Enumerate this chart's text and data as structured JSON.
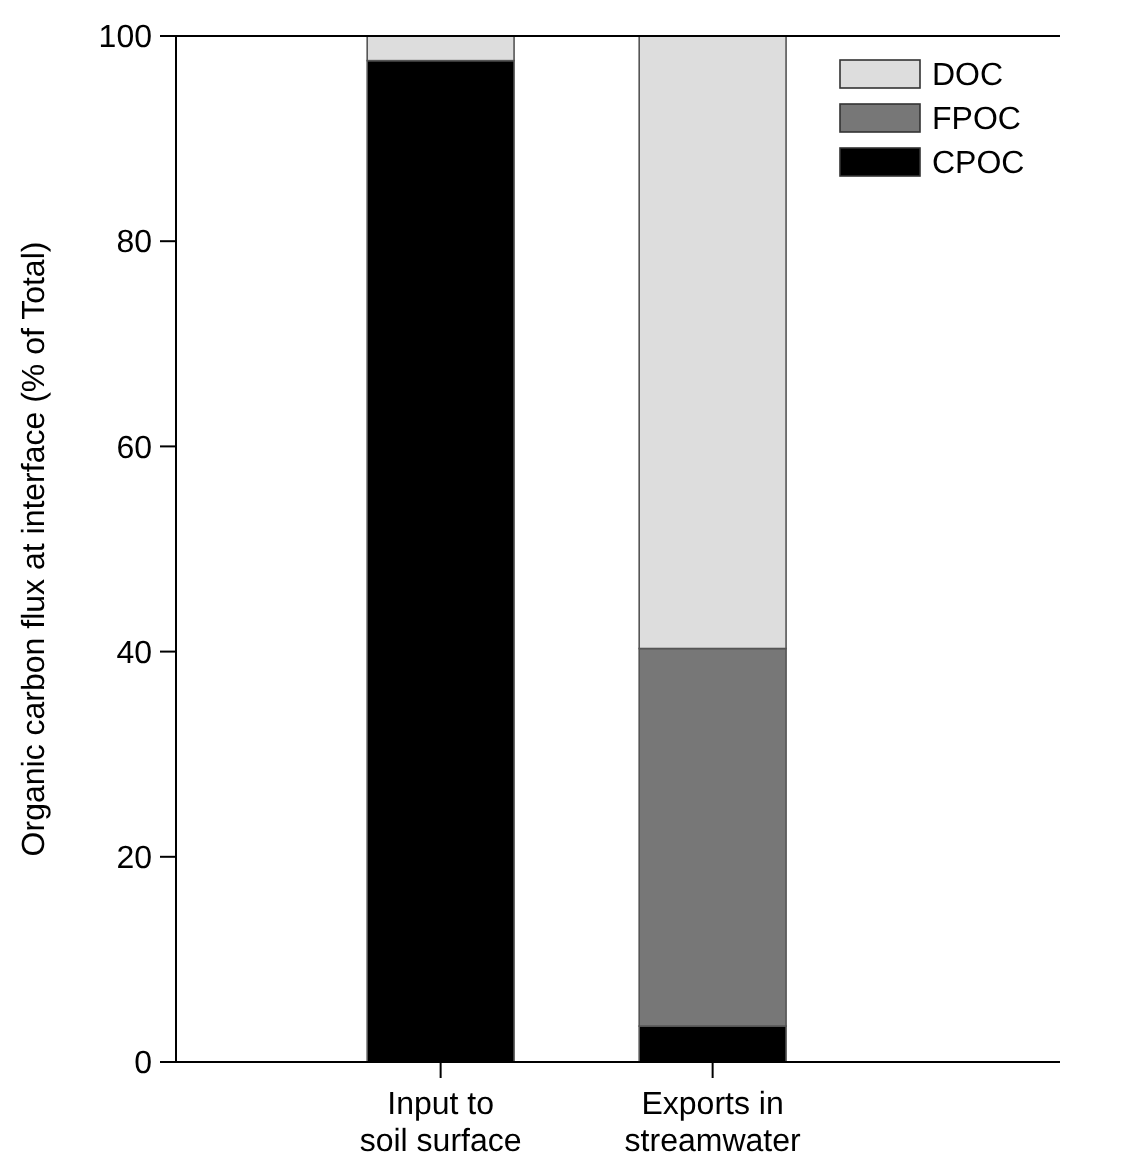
{
  "chart_data": {
    "type": "bar",
    "stacked": true,
    "ylabel": "Organic carbon flux at interface (% of Total)",
    "categories": [
      "Input to\nsoil surface",
      "Exports in\nstreamwater",
      null
    ],
    "series": [
      {
        "name": "CPOC",
        "color": "#000000",
        "values": [
          97.6,
          3.5,
          null
        ]
      },
      {
        "name": "FPOC",
        "color": "#777777",
        "values": [
          0,
          36.8,
          null
        ]
      },
      {
        "name": "DOC",
        "color": "#dddddd",
        "values": [
          2.4,
          59.7,
          null
        ]
      }
    ],
    "ylim": [
      0,
      100
    ],
    "yticks": [
      0,
      20,
      40,
      60,
      80,
      100
    ],
    "legend": "top right"
  }
}
